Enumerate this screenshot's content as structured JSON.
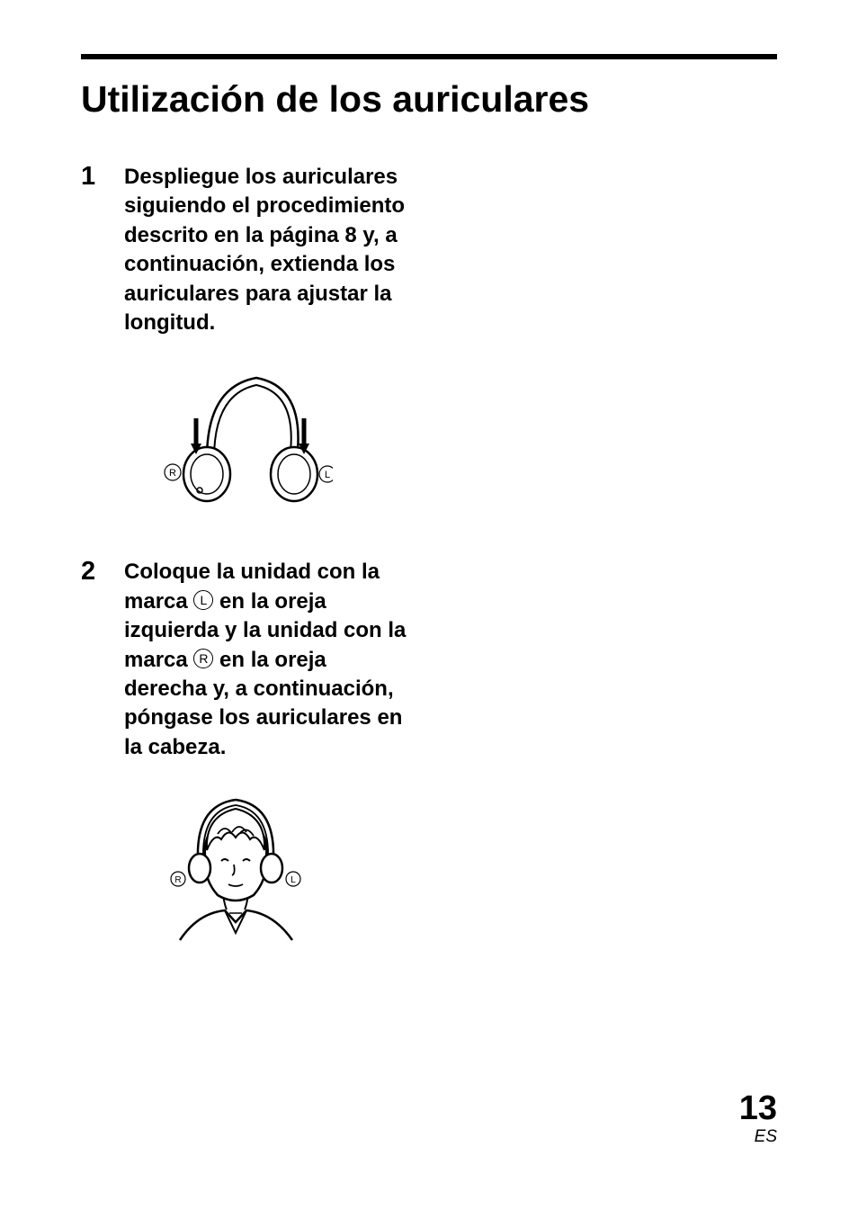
{
  "title": "Utilización de los auriculares",
  "steps": [
    {
      "number": "1",
      "text": "Despliegue los auriculares siguiendo el procedimiento descrito en la página 8 y, a continuación, extienda los auriculares para ajustar la longitud."
    },
    {
      "number": "2",
      "text_parts": [
        "Coloque la unidad con la marca ",
        {
          "circled": "L"
        },
        " en la oreja izquierda y la unidad con la marca ",
        {
          "circled": "R"
        },
        " en la oreja derecha y, a continuación, póngase los auriculares en la cabeza."
      ]
    }
  ],
  "illustrations": {
    "headphones": {
      "left_label": "R",
      "right_label": "L",
      "stroke": "#000000",
      "fill": "#ffffff"
    },
    "person": {
      "left_label": "R",
      "right_label": "L",
      "stroke": "#000000",
      "fill": "#ffffff"
    }
  },
  "footer": {
    "page": "13",
    "locale": "ES"
  },
  "colors": {
    "text": "#000000",
    "background": "#ffffff",
    "rule": "#000000"
  }
}
